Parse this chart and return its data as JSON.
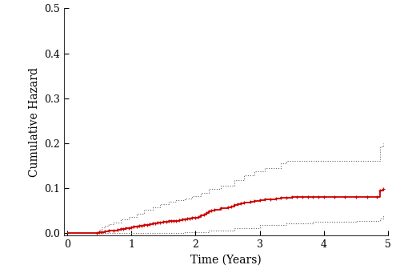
{
  "title": "",
  "xlabel": "Time (Years)",
  "ylabel": "Cumulative Hazard",
  "xlim": [
    -0.05,
    5.0
  ],
  "ylim": [
    -0.005,
    0.5
  ],
  "xticks": [
    0,
    1,
    2,
    3,
    4,
    5
  ],
  "yticks": [
    0.0,
    0.1,
    0.2,
    0.3,
    0.4,
    0.5
  ],
  "ytick_labels": [
    "0.0",
    "0.1",
    "0.2",
    "0.3",
    "0.4",
    "0.5"
  ],
  "main_color": "#CC0000",
  "ci_color": "#666666",
  "background_color": "#ffffff",
  "main_x": [
    0.0,
    0.46,
    0.5,
    0.54,
    0.58,
    0.65,
    0.72,
    0.79,
    0.83,
    0.87,
    0.91,
    0.96,
    1.0,
    1.04,
    1.08,
    1.12,
    1.16,
    1.2,
    1.25,
    1.29,
    1.33,
    1.37,
    1.41,
    1.45,
    1.5,
    1.54,
    1.58,
    1.62,
    1.66,
    1.7,
    1.75,
    1.79,
    1.83,
    1.87,
    1.91,
    1.95,
    2.0,
    2.04,
    2.08,
    2.13,
    2.17,
    2.21,
    2.25,
    2.3,
    2.4,
    2.5,
    2.55,
    2.6,
    2.65,
    2.7,
    2.75,
    2.85,
    2.92,
    3.0,
    3.08,
    3.17,
    3.25,
    3.33,
    3.42,
    3.5,
    3.58,
    3.67,
    3.75,
    3.83,
    3.92,
    4.0,
    4.17,
    4.33,
    4.5,
    4.67,
    4.83,
    4.87,
    4.92
  ],
  "main_y": [
    0.0,
    0.0,
    0.002,
    0.003,
    0.004,
    0.005,
    0.006,
    0.008,
    0.009,
    0.01,
    0.011,
    0.012,
    0.013,
    0.014,
    0.015,
    0.016,
    0.017,
    0.018,
    0.019,
    0.02,
    0.021,
    0.022,
    0.023,
    0.024,
    0.025,
    0.026,
    0.027,
    0.027,
    0.028,
    0.028,
    0.029,
    0.03,
    0.031,
    0.032,
    0.033,
    0.034,
    0.035,
    0.037,
    0.039,
    0.042,
    0.045,
    0.048,
    0.05,
    0.052,
    0.055,
    0.058,
    0.06,
    0.062,
    0.064,
    0.066,
    0.068,
    0.07,
    0.072,
    0.074,
    0.075,
    0.076,
    0.077,
    0.078,
    0.079,
    0.08,
    0.08,
    0.08,
    0.08,
    0.08,
    0.08,
    0.08,
    0.08,
    0.08,
    0.08,
    0.08,
    0.08,
    0.095,
    0.098
  ],
  "upper_x": [
    0.0,
    0.46,
    0.5,
    0.54,
    0.58,
    0.65,
    0.72,
    0.83,
    0.96,
    1.08,
    1.2,
    1.33,
    1.45,
    1.58,
    1.7,
    1.83,
    1.95,
    2.08,
    2.21,
    2.4,
    2.6,
    2.75,
    2.92,
    3.08,
    3.33,
    3.42,
    3.92,
    4.0,
    4.83,
    4.87,
    4.92
  ],
  "upper_y": [
    0.0,
    0.0,
    0.008,
    0.013,
    0.016,
    0.02,
    0.024,
    0.03,
    0.037,
    0.044,
    0.052,
    0.058,
    0.064,
    0.07,
    0.073,
    0.077,
    0.082,
    0.09,
    0.098,
    0.106,
    0.118,
    0.128,
    0.137,
    0.145,
    0.155,
    0.16,
    0.16,
    0.16,
    0.16,
    0.193,
    0.2
  ],
  "lower_x": [
    0.0,
    0.46,
    0.72,
    1.08,
    1.45,
    1.83,
    2.21,
    2.6,
    3.0,
    3.42,
    3.83,
    4.0,
    4.5,
    4.83,
    4.87,
    4.92
  ],
  "lower_y": [
    0.0,
    0.0,
    0.0,
    0.0,
    0.0,
    0.002,
    0.006,
    0.012,
    0.018,
    0.022,
    0.025,
    0.026,
    0.028,
    0.028,
    0.032,
    0.04
  ],
  "tick_x": [
    0.46,
    0.5,
    0.54,
    0.58,
    0.65,
    0.72,
    0.79,
    0.83,
    0.87,
    0.91,
    0.96,
    1.0,
    1.04,
    1.08,
    1.12,
    1.16,
    1.2,
    1.25,
    1.29,
    1.33,
    1.37,
    1.41,
    1.45,
    1.5,
    1.54,
    1.58,
    1.62,
    1.66,
    1.7,
    1.75,
    1.79,
    1.83,
    1.87,
    1.91,
    1.95,
    2.0,
    2.04,
    2.08,
    2.13,
    2.17,
    2.21,
    2.25,
    2.3,
    2.4,
    2.5,
    2.55,
    2.6,
    2.65,
    2.7,
    2.75,
    2.85,
    2.92,
    3.0,
    3.08,
    3.17,
    3.25,
    3.33,
    3.42,
    3.5,
    3.58,
    3.67,
    3.75,
    3.83,
    3.92,
    4.0,
    4.17,
    4.33,
    4.5,
    4.67,
    4.83,
    4.87,
    4.92
  ]
}
